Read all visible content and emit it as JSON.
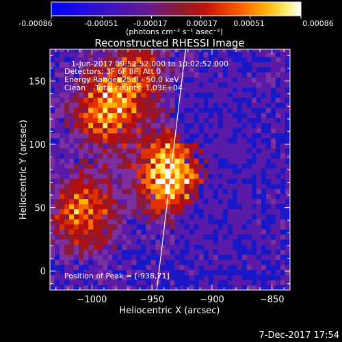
{
  "colorbar": {
    "ticks": [
      "-0.00086",
      "-0.00051",
      "-0.00017",
      "0.00017",
      "0.00051",
      "0.00086"
    ],
    "tick_values": [
      -0.00086,
      -0.00051,
      -0.00017,
      0.00017,
      0.00051,
      0.00086
    ],
    "unit_label": "(photons cm⁻² s⁻¹ asec⁻²)"
  },
  "plot": {
    "title": "Reconstructed RHESSI Image",
    "info_lines": [
      "1-Jun-2017 09:52:52.000 to 10:02:52.000",
      "Detectors: 3F 6F 8F, Att 0",
      "Energy Range: 25.0 - 50.0 keV",
      "Clean    Total counts: 1.03E+04"
    ],
    "peak_label": "Position of Peak = [-938,71]"
  },
  "footer": {
    "timestamp": "7-Dec-2017 17:54"
  },
  "colors": {
    "background": "#000000",
    "map_colors": [
      "#1818c8",
      "#5a1aa8",
      "#7c2f9e",
      "#8a1a3a",
      "#b01010",
      "#e03000",
      "#ff6a00",
      "#ffb400",
      "#ffee70",
      "#ffffff"
    ]
  },
  "chart_data": {
    "type": "heatmap",
    "title": "Reconstructed RHESSI Image",
    "xlabel": "Heliocentric X (arcsec)",
    "ylabel": "Heliocentric Y (arcsec)",
    "xlim": [
      -1035,
      -835
    ],
    "ylim": [
      -15,
      175
    ],
    "x_ticks": [
      -1000,
      -950,
      -900,
      -850
    ],
    "y_ticks": [
      0,
      50,
      100,
      150
    ],
    "x_tick_labels": [
      "−1000",
      "−950",
      "−900",
      "−850"
    ],
    "y_tick_labels": [
      "0",
      "50",
      "100",
      "150"
    ],
    "peak": [
      -938,
      71
    ],
    "limb_line": {
      "x_start": -946,
      "y_start": -15,
      "x_end": -922,
      "y_end": 175
    },
    "hot_regions": [
      {
        "x": -938,
        "y": 75,
        "value": 0.00086
      },
      {
        "x": -990,
        "y": 125,
        "value": 0.00065
      },
      {
        "x": -1010,
        "y": 45,
        "value": 0.0006
      },
      {
        "x": -965,
        "y": 155,
        "value": 0.0004
      }
    ]
  }
}
